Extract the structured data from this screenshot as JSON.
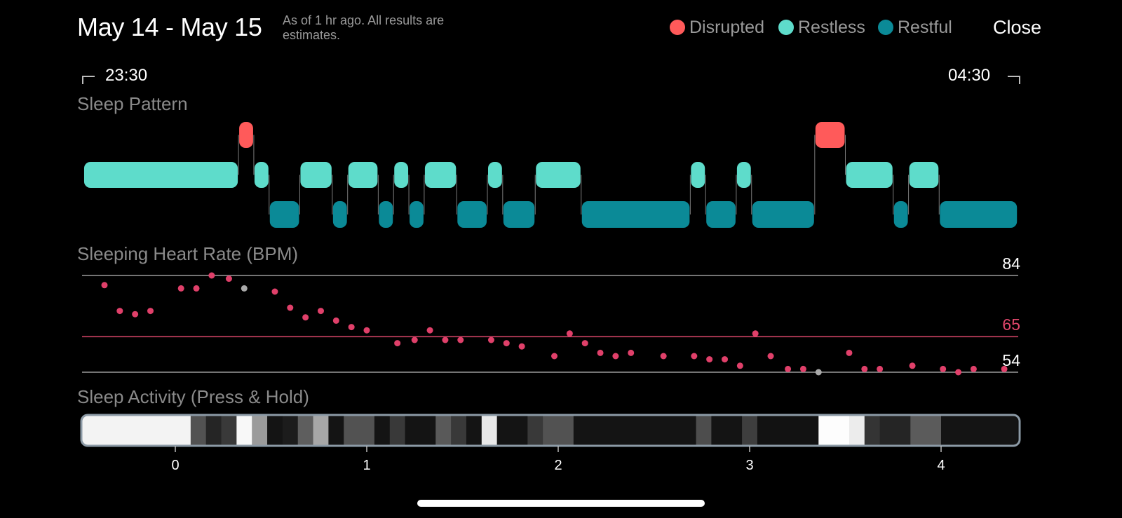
{
  "header": {
    "title": "May 14 - May 15",
    "subtitle": "As of 1 hr ago. All results are estimates.",
    "close_label": "Close"
  },
  "legend": [
    {
      "label": "Disrupted",
      "color": "#ff5a5a"
    },
    {
      "label": "Restless",
      "color": "#5edccb"
    },
    {
      "label": "Restful",
      "color": "#0b8a97"
    }
  ],
  "time_range": {
    "start": "23:30",
    "end": "04:30"
  },
  "sections": {
    "sleep_pattern": "Sleep Pattern",
    "heart_rate": "Sleeping Heart Rate (BPM)",
    "activity": "Sleep Activity (Press & Hold)"
  },
  "chart_data": [
    {
      "type": "timeline",
      "title": "Sleep Pattern",
      "x_unit": "hours",
      "levels": [
        "Disrupted",
        "Restless",
        "Restful"
      ],
      "segments": [
        {
          "start": -0.48,
          "end": 0.33,
          "state": "Restless"
        },
        {
          "start": 0.33,
          "end": 0.41,
          "state": "Disrupted"
        },
        {
          "start": 0.41,
          "end": 0.49,
          "state": "Restless"
        },
        {
          "start": 0.49,
          "end": 0.65,
          "state": "Restful"
        },
        {
          "start": 0.65,
          "end": 0.82,
          "state": "Restless"
        },
        {
          "start": 0.82,
          "end": 0.9,
          "state": "Restful"
        },
        {
          "start": 0.9,
          "end": 1.06,
          "state": "Restless"
        },
        {
          "start": 1.06,
          "end": 1.14,
          "state": "Restful"
        },
        {
          "start": 1.14,
          "end": 1.22,
          "state": "Restless"
        },
        {
          "start": 1.22,
          "end": 1.3,
          "state": "Restful"
        },
        {
          "start": 1.3,
          "end": 1.47,
          "state": "Restless"
        },
        {
          "start": 1.47,
          "end": 1.63,
          "state": "Restful"
        },
        {
          "start": 1.63,
          "end": 1.71,
          "state": "Restless"
        },
        {
          "start": 1.71,
          "end": 1.88,
          "state": "Restful"
        },
        {
          "start": 1.88,
          "end": 2.12,
          "state": "Restless"
        },
        {
          "start": 2.12,
          "end": 2.69,
          "state": "Restful"
        },
        {
          "start": 2.69,
          "end": 2.77,
          "state": "Restless"
        },
        {
          "start": 2.77,
          "end": 2.93,
          "state": "Restful"
        },
        {
          "start": 2.93,
          "end": 3.01,
          "state": "Restless"
        },
        {
          "start": 3.01,
          "end": 3.34,
          "state": "Restful"
        },
        {
          "start": 3.34,
          "end": 3.5,
          "state": "Disrupted"
        },
        {
          "start": 3.5,
          "end": 3.75,
          "state": "Restless"
        },
        {
          "start": 3.75,
          "end": 3.83,
          "state": "Restful"
        },
        {
          "start": 3.83,
          "end": 3.99,
          "state": "Restless"
        },
        {
          "start": 3.99,
          "end": 4.4,
          "state": "Restful"
        }
      ]
    },
    {
      "type": "scatter",
      "title": "Sleeping Heart Rate (BPM)",
      "y_reference_lines": [
        {
          "value": 84,
          "label": "84"
        },
        {
          "value": 65,
          "label": "65"
        },
        {
          "value": 54,
          "label": "54"
        }
      ],
      "ylim": [
        54,
        84
      ],
      "points": [
        {
          "x": -0.37,
          "y": 81
        },
        {
          "x": -0.29,
          "y": 73
        },
        {
          "x": -0.21,
          "y": 72
        },
        {
          "x": -0.13,
          "y": 73
        },
        {
          "x": 0.03,
          "y": 80
        },
        {
          "x": 0.11,
          "y": 80
        },
        {
          "x": 0.19,
          "y": 84
        },
        {
          "x": 0.28,
          "y": 83
        },
        {
          "x": 0.36,
          "y": 80,
          "highlight": true
        },
        {
          "x": 0.52,
          "y": 79
        },
        {
          "x": 0.6,
          "y": 74
        },
        {
          "x": 0.68,
          "y": 71
        },
        {
          "x": 0.76,
          "y": 73
        },
        {
          "x": 0.84,
          "y": 70
        },
        {
          "x": 0.92,
          "y": 68
        },
        {
          "x": 1.0,
          "y": 67
        },
        {
          "x": 1.16,
          "y": 63
        },
        {
          "x": 1.25,
          "y": 64
        },
        {
          "x": 1.33,
          "y": 67
        },
        {
          "x": 1.41,
          "y": 64
        },
        {
          "x": 1.49,
          "y": 64
        },
        {
          "x": 1.65,
          "y": 64
        },
        {
          "x": 1.73,
          "y": 63
        },
        {
          "x": 1.81,
          "y": 62
        },
        {
          "x": 1.98,
          "y": 59
        },
        {
          "x": 2.06,
          "y": 66
        },
        {
          "x": 2.14,
          "y": 63
        },
        {
          "x": 2.22,
          "y": 60
        },
        {
          "x": 2.3,
          "y": 59
        },
        {
          "x": 2.38,
          "y": 60
        },
        {
          "x": 2.55,
          "y": 59
        },
        {
          "x": 2.71,
          "y": 59
        },
        {
          "x": 2.79,
          "y": 58
        },
        {
          "x": 2.87,
          "y": 58
        },
        {
          "x": 2.95,
          "y": 56
        },
        {
          "x": 3.03,
          "y": 66
        },
        {
          "x": 3.11,
          "y": 59
        },
        {
          "x": 3.2,
          "y": 55
        },
        {
          "x": 3.28,
          "y": 55
        },
        {
          "x": 3.36,
          "y": 54,
          "highlight": true
        },
        {
          "x": 3.52,
          "y": 60
        },
        {
          "x": 3.6,
          "y": 55
        },
        {
          "x": 3.68,
          "y": 55
        },
        {
          "x": 3.85,
          "y": 56
        },
        {
          "x": 4.01,
          "y": 55
        },
        {
          "x": 4.09,
          "y": 54
        },
        {
          "x": 4.17,
          "y": 55
        },
        {
          "x": 4.33,
          "y": 55
        }
      ]
    },
    {
      "type": "heatmap",
      "title": "Sleep Activity (Press & Hold)",
      "x_ticks": [
        "0",
        "1",
        "2",
        "3",
        "4"
      ],
      "x_tick_values": [
        0,
        1,
        2,
        3,
        4
      ],
      "xlim": [
        -0.5,
        4.4
      ],
      "cells": [
        {
          "start": -0.5,
          "end": 0.08,
          "level": 0.96
        },
        {
          "start": 0.08,
          "end": 0.16,
          "level": 0.3
        },
        {
          "start": 0.16,
          "end": 0.24,
          "level": 0.12
        },
        {
          "start": 0.24,
          "end": 0.32,
          "level": 0.2
        },
        {
          "start": 0.32,
          "end": 0.4,
          "level": 0.98
        },
        {
          "start": 0.4,
          "end": 0.48,
          "level": 0.6
        },
        {
          "start": 0.48,
          "end": 0.56,
          "level": 0.05
        },
        {
          "start": 0.56,
          "end": 0.64,
          "level": 0.08
        },
        {
          "start": 0.64,
          "end": 0.72,
          "level": 0.35
        },
        {
          "start": 0.72,
          "end": 0.8,
          "level": 0.65
        },
        {
          "start": 0.8,
          "end": 0.88,
          "level": 0.05
        },
        {
          "start": 0.88,
          "end": 1.04,
          "level": 0.3
        },
        {
          "start": 1.04,
          "end": 1.12,
          "level": 0.05
        },
        {
          "start": 1.12,
          "end": 1.2,
          "level": 0.2
        },
        {
          "start": 1.2,
          "end": 1.28,
          "level": 0.05
        },
        {
          "start": 1.28,
          "end": 1.36,
          "level": 0.05
        },
        {
          "start": 1.36,
          "end": 1.44,
          "level": 0.33
        },
        {
          "start": 1.44,
          "end": 1.52,
          "level": 0.2
        },
        {
          "start": 1.52,
          "end": 1.6,
          "level": 0.05
        },
        {
          "start": 1.6,
          "end": 1.68,
          "level": 0.92
        },
        {
          "start": 1.68,
          "end": 1.84,
          "level": 0.05
        },
        {
          "start": 1.84,
          "end": 1.92,
          "level": 0.2
        },
        {
          "start": 1.92,
          "end": 2.08,
          "level": 0.3
        },
        {
          "start": 2.08,
          "end": 2.16,
          "level": 0.05
        },
        {
          "start": 2.16,
          "end": 2.72,
          "level": 0.05
        },
        {
          "start": 2.72,
          "end": 2.8,
          "level": 0.28
        },
        {
          "start": 2.8,
          "end": 2.96,
          "level": 0.05
        },
        {
          "start": 2.96,
          "end": 3.04,
          "level": 0.22
        },
        {
          "start": 3.04,
          "end": 3.36,
          "level": 0.04
        },
        {
          "start": 3.36,
          "end": 3.52,
          "level": 1.0
        },
        {
          "start": 3.52,
          "end": 3.6,
          "level": 0.93
        },
        {
          "start": 3.6,
          "end": 3.68,
          "level": 0.18
        },
        {
          "start": 3.68,
          "end": 3.84,
          "level": 0.12
        },
        {
          "start": 3.84,
          "end": 4.0,
          "level": 0.34
        },
        {
          "start": 4.0,
          "end": 4.4,
          "level": 0.05
        }
      ]
    }
  ]
}
